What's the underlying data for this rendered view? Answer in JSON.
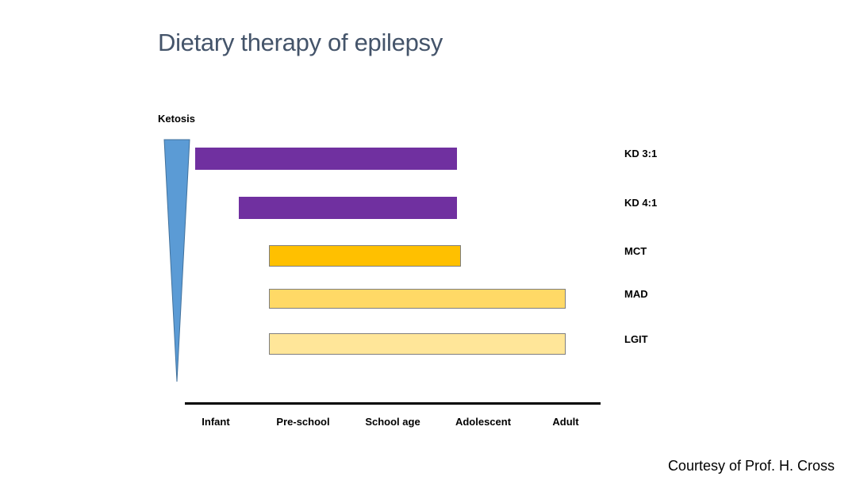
{
  "title": "Dietary therapy of epilepsy",
  "ketosis_label": "Ketosis",
  "credit": "Courtesy of Prof. H. Cross",
  "colors": {
    "wedge": "#5b9bd5",
    "kd": "#7030a0",
    "mct": "#ffc000",
    "mad": "#ffd966",
    "lgit": "#ffe699"
  },
  "chart_data": {
    "type": "gantt",
    "categories": [
      "Infant",
      "Pre-school",
      "School age",
      "Adolescent",
      "Adult"
    ],
    "series": [
      {
        "name": "KD 3:1",
        "start": 0.25,
        "end": 3.25,
        "color": "#7030a0"
      },
      {
        "name": "KD 4:1",
        "start": 0.75,
        "end": 3.25,
        "color": "#7030a0"
      },
      {
        "name": "MCT",
        "start": 1.1,
        "end": 3.3,
        "color": "#ffc000"
      },
      {
        "name": "MAD",
        "start": 1.1,
        "end": 4.5,
        "color": "#ffd966"
      },
      {
        "name": "LGIT",
        "start": 1.1,
        "end": 4.5,
        "color": "#ffe699"
      }
    ],
    "ylabel": "Ketosis",
    "ylabel_direction": "decreasing downward"
  }
}
